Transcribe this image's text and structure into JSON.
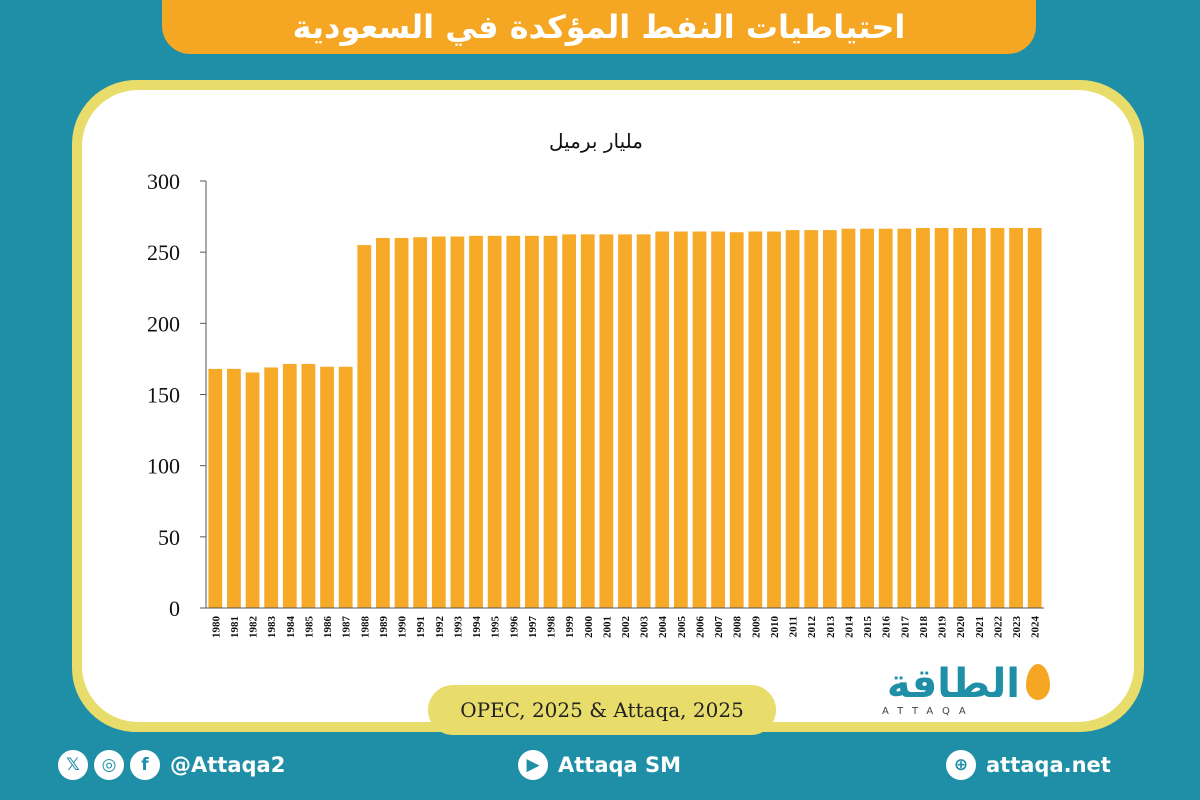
{
  "header": {
    "title": "احتياطيات النفط المؤكدة في السعودية"
  },
  "source": "OPEC, 2025 & Attaqa, 2025",
  "logo": {
    "arabic": "الطاقة",
    "latin": "ATTAQA"
  },
  "footer": {
    "social_handle": "@Attaqa2",
    "youtube": "Attaqa SM",
    "website": "attaqa.net",
    "icons": [
      "x-icon",
      "instagram-icon",
      "facebook-icon",
      "youtube-icon",
      "globe-icon"
    ]
  },
  "colors": {
    "background": "#1e8fa6",
    "accent": "#f5a623",
    "frame": "#e8dd6a",
    "bar": "#f7a928"
  },
  "chart_data": {
    "type": "bar",
    "title": "",
    "ylabel": "مليار برميل",
    "xlabel": "",
    "ylim": [
      0,
      300
    ],
    "yticks": [
      0,
      50,
      100,
      150,
      200,
      250,
      300
    ],
    "categories": [
      "1980",
      "1981",
      "1982",
      "1983",
      "1984",
      "1985",
      "1986",
      "1987",
      "1988",
      "1989",
      "1990",
      "1991",
      "1992",
      "1993",
      "1994",
      "1995",
      "1996",
      "1997",
      "1998",
      "1999",
      "2000",
      "2001",
      "2002",
      "2003",
      "2004",
      "2005",
      "2006",
      "2007",
      "2008",
      "2009",
      "2010",
      "2011",
      "2012",
      "2013",
      "2014",
      "2015",
      "2016",
      "2017",
      "2018",
      "2019",
      "2020",
      "2021",
      "2022",
      "2023",
      "2024"
    ],
    "values": [
      168,
      168,
      165.5,
      169,
      171.5,
      171.5,
      169.5,
      169.5,
      255,
      260,
      260,
      260.5,
      261,
      261,
      261.5,
      261.5,
      261.5,
      261.5,
      261.5,
      262.5,
      262.5,
      262.5,
      262.5,
      262.5,
      264.5,
      264.5,
      264.5,
      264.5,
      264,
      264.5,
      264.5,
      265.5,
      265.5,
      265.5,
      266.5,
      266.5,
      266.5,
      266.5,
      267,
      267,
      267,
      267,
      267,
      267,
      267
    ],
    "grid": false,
    "legend": "none"
  }
}
